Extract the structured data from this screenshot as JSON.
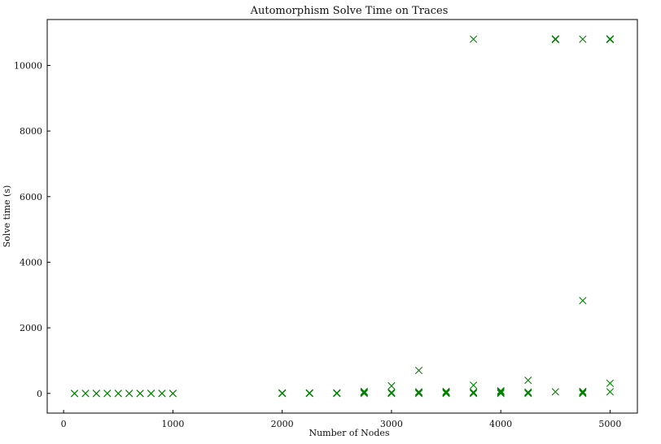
{
  "chart_data": {
    "type": "scatter",
    "title": "Automorphism Solve Time on Traces",
    "xlabel": "Number of Nodes",
    "ylabel": "Solve time (s)",
    "xlim": [
      -150,
      5250
    ],
    "ylim": [
      -600,
      11400
    ],
    "xticks": [
      0,
      1000,
      2000,
      3000,
      4000,
      5000
    ],
    "yticks": [
      0,
      2000,
      4000,
      6000,
      8000,
      10000
    ],
    "grid": false,
    "marker": "x",
    "color": "#008000",
    "series": [
      {
        "points": [
          [
            100,
            0
          ],
          [
            100,
            0
          ],
          [
            200,
            0
          ],
          [
            200,
            0
          ],
          [
            300,
            0
          ],
          [
            300,
            0
          ],
          [
            400,
            0
          ],
          [
            400,
            0
          ],
          [
            500,
            0
          ],
          [
            500,
            0
          ],
          [
            600,
            0
          ],
          [
            600,
            0
          ],
          [
            700,
            0
          ],
          [
            700,
            0
          ],
          [
            800,
            0
          ],
          [
            800,
            0
          ],
          [
            900,
            0
          ],
          [
            900,
            0
          ],
          [
            1000,
            0
          ],
          [
            1000,
            0
          ],
          [
            2000,
            0
          ],
          [
            2000,
            4
          ],
          [
            2000,
            8
          ],
          [
            2000,
            12
          ],
          [
            2250,
            0
          ],
          [
            2250,
            6
          ],
          [
            2250,
            10
          ],
          [
            2250,
            14
          ],
          [
            2500,
            0
          ],
          [
            2500,
            8
          ],
          [
            2500,
            12
          ],
          [
            2500,
            16
          ],
          [
            2750,
            0
          ],
          [
            2750,
            20
          ],
          [
            2750,
            40
          ],
          [
            2750,
            60
          ],
          [
            3000,
            0
          ],
          [
            3000,
            10
          ],
          [
            3000,
            30
          ],
          [
            3000,
            230
          ],
          [
            3250,
            0
          ],
          [
            3250,
            20
          ],
          [
            3250,
            50
          ],
          [
            3250,
            700
          ],
          [
            3500,
            0
          ],
          [
            3500,
            20
          ],
          [
            3500,
            40
          ],
          [
            3500,
            60
          ],
          [
            3750,
            0
          ],
          [
            3750,
            20
          ],
          [
            3750,
            40
          ],
          [
            3750,
            250
          ],
          [
            3750,
            10800
          ],
          [
            4000,
            0
          ],
          [
            4000,
            30
          ],
          [
            4000,
            60
          ],
          [
            4000,
            80
          ],
          [
            4250,
            0
          ],
          [
            4250,
            20
          ],
          [
            4250,
            40
          ],
          [
            4250,
            400
          ],
          [
            4500,
            50
          ],
          [
            4500,
            10790
          ],
          [
            4500,
            10800
          ],
          [
            4500,
            10810
          ],
          [
            4750,
            0
          ],
          [
            4750,
            30
          ],
          [
            4750,
            60
          ],
          [
            4750,
            2830
          ],
          [
            4750,
            10800
          ],
          [
            5000,
            50
          ],
          [
            5000,
            310
          ],
          [
            5000,
            10790
          ],
          [
            5000,
            10800
          ],
          [
            5000,
            10810
          ]
        ]
      }
    ]
  }
}
